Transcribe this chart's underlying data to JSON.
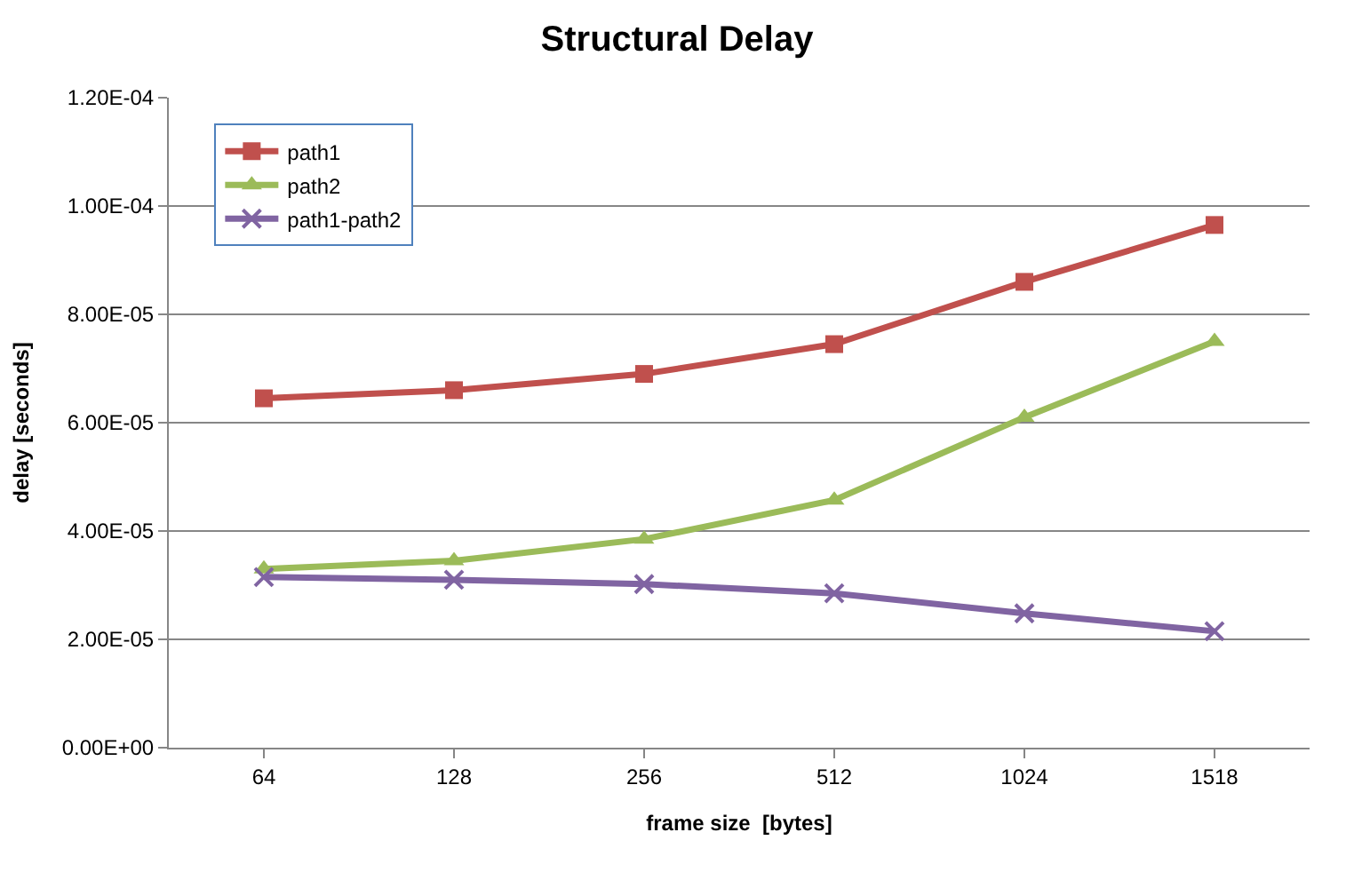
{
  "chart_data": {
    "type": "line",
    "title": "Structural Delay",
    "xlabel": "frame size  [bytes]",
    "ylabel": "delay [seconds]",
    "categories": [
      "64",
      "128",
      "256",
      "512",
      "1024",
      "1518"
    ],
    "series": [
      {
        "name": "path1",
        "color": "#c0504d",
        "marker": "square",
        "values": [
          6.45e-05,
          6.6e-05,
          6.9e-05,
          7.45e-05,
          8.6e-05,
          9.65e-05
        ]
      },
      {
        "name": "path2",
        "color": "#9bbb59",
        "marker": "triangle",
        "values": [
          3.3e-05,
          3.45e-05,
          3.85e-05,
          4.57e-05,
          6.1e-05,
          7.5e-05
        ]
      },
      {
        "name": "path1-path2",
        "color": "#8064a2",
        "marker": "cross",
        "values": [
          3.15e-05,
          3.1e-05,
          3.02e-05,
          2.85e-05,
          2.48e-05,
          2.15e-05
        ]
      }
    ],
    "ylim": [
      0,
      0.00012
    ],
    "yticks": [
      {
        "value": 0,
        "label": "0.00E+00"
      },
      {
        "value": 2e-05,
        "label": "2.00E-05"
      },
      {
        "value": 4e-05,
        "label": "4.00E-05"
      },
      {
        "value": 6e-05,
        "label": "6.00E-05"
      },
      {
        "value": 8e-05,
        "label": "8.00E-05"
      },
      {
        "value": 0.0001,
        "label": "1.00E-04"
      },
      {
        "value": 0.00012,
        "label": "1.20E-04"
      }
    ],
    "grid": "y",
    "legend": "top left",
    "line_style": "solid"
  }
}
